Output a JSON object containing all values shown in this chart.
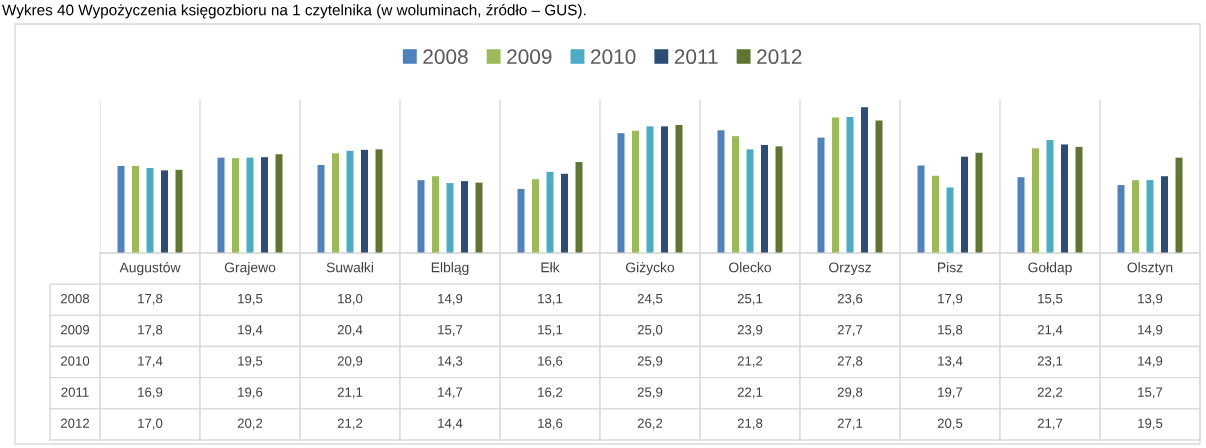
{
  "chart_data": {
    "type": "bar",
    "title": "Wykres 40 Wypożyczenia księgozbioru na 1 czytelnika (w woluminach, źródło – GUS).",
    "categories": [
      "Augustów",
      "Grajewo",
      "Suwałki",
      "Elbląg",
      "Ełk",
      "Giżycko",
      "Olecko",
      "Orzysz",
      "Pisz",
      "Gołdap",
      "Olsztyn"
    ],
    "series": [
      {
        "name": "2008",
        "color": "#4f81bd",
        "values": [
          17.8,
          19.5,
          18.0,
          14.9,
          13.1,
          24.5,
          25.1,
          23.6,
          17.9,
          15.5,
          13.9
        ],
        "value_labels": [
          "17,8",
          "19,5",
          "18,0",
          "14,9",
          "13,1",
          "24,5",
          "25,1",
          "23,6",
          "17,9",
          "15,5",
          "13,9"
        ]
      },
      {
        "name": "2009",
        "color": "#9bbb59",
        "values": [
          17.8,
          19.4,
          20.4,
          15.7,
          15.1,
          25.0,
          23.9,
          27.7,
          15.8,
          21.4,
          14.9
        ],
        "value_labels": [
          "17,8",
          "19,4",
          "20,4",
          "15,7",
          "15,1",
          "25,0",
          "23,9",
          "27,7",
          "15,8",
          "21,4",
          "14,9"
        ]
      },
      {
        "name": "2010",
        "color": "#4bacc6",
        "values": [
          17.4,
          19.5,
          20.9,
          14.3,
          16.6,
          25.9,
          21.2,
          27.8,
          13.4,
          23.1,
          14.9
        ],
        "value_labels": [
          "17,4",
          "19,5",
          "20,9",
          "14,3",
          "16,6",
          "25,9",
          "21,2",
          "27,8",
          "13,4",
          "23,1",
          "14,9"
        ]
      },
      {
        "name": "2011",
        "color": "#2c4d75",
        "values": [
          16.9,
          19.6,
          21.1,
          14.7,
          16.2,
          25.9,
          22.1,
          29.8,
          19.7,
          22.2,
          15.7
        ],
        "value_labels": [
          "16,9",
          "19,6",
          "21,1",
          "14,7",
          "16,2",
          "25,9",
          "22,1",
          "29,8",
          "19,7",
          "22,2",
          "15,7"
        ]
      },
      {
        "name": "2012",
        "color": "#5f7530",
        "values": [
          17.0,
          20.2,
          21.2,
          14.4,
          18.6,
          26.2,
          21.8,
          27.1,
          20.5,
          21.7,
          19.5
        ],
        "value_labels": [
          "17,0",
          "20,2",
          "21,2",
          "14,4",
          "18,6",
          "26,2",
          "21,8",
          "27,1",
          "20,5",
          "21,7",
          "19,5"
        ]
      }
    ],
    "legend": "top"
  }
}
